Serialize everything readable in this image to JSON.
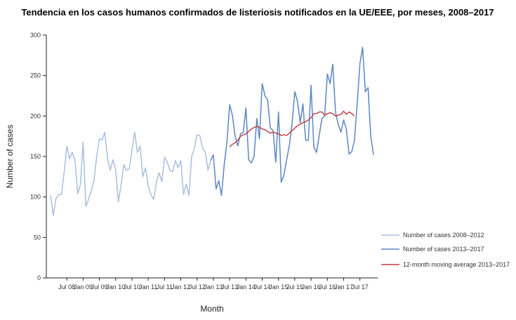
{
  "chart_data": {
    "type": "line",
    "title": "Tendencia en los casos humanos confirmados de listeriosis notificados en la UE/EEE, por meses, 2008–2017",
    "xlabel": "Month",
    "ylabel": "Number of cases",
    "ylim": [
      0,
      300
    ],
    "yticks": [
      0,
      50,
      100,
      150,
      200,
      250,
      300
    ],
    "grid": false,
    "legend_position": "right",
    "x_tick_labels": [
      "Jul 08",
      "Jan 09",
      "Jul 09",
      "Jan 10",
      "Jul 10",
      "Jan 11",
      "Jul 11",
      "Jan 12",
      "Jul 12",
      "Jan 13",
      "Jul 13",
      "Jan 14",
      "Jul 14",
      "Jan 15",
      "Jul 15",
      "Jan 16",
      "Jul 16",
      "Jan 17",
      "Jul 17"
    ],
    "series": [
      {
        "name": "Number of cases 2008–2012",
        "color": "#a9bfe0",
        "start_month_index": 0,
        "values": [
          102,
          77,
          98,
          103,
          103,
          130,
          163,
          147,
          155,
          145,
          104,
          115,
          168,
          88,
          97,
          108,
          120,
          150,
          172,
          170,
          180,
          148,
          133,
          146,
          133,
          94,
          115,
          140,
          133,
          135,
          158,
          180,
          155,
          163,
          125,
          136,
          113,
          103,
          97,
          118,
          130,
          119,
          149,
          143,
          133,
          131,
          145,
          136,
          145,
          103,
          116,
          102,
          150,
          160,
          177,
          176,
          160,
          156,
          133,
          145
        ]
      },
      {
        "name": "Number of cases 2013–2017",
        "color": "#5b87c2",
        "start_month_index": 59,
        "values": [
          145,
          152,
          110,
          120,
          102,
          140,
          168,
          214,
          201,
          175,
          163,
          178,
          180,
          210,
          146,
          142,
          150,
          197,
          172,
          240,
          225,
          220,
          185,
          182,
          143,
          205,
          118,
          127,
          146,
          164,
          190,
          230,
          218,
          192,
          215,
          170,
          170,
          238,
          162,
          155,
          176,
          197,
          200,
          252,
          240,
          264,
          205,
          190,
          180,
          195,
          184,
          153,
          156,
          170,
          215,
          265,
          285,
          230,
          235,
          175,
          152
        ]
      },
      {
        "name": "12-month moving average 2013–2017",
        "color": "#c0393b",
        "start_month_index": 66,
        "values": [
          162,
          165,
          167,
          170,
          175,
          177,
          178,
          181,
          184,
          186,
          187,
          186,
          184,
          183,
          181,
          179,
          180,
          179,
          178,
          176,
          177,
          176,
          179,
          182,
          185,
          188,
          190,
          192,
          193,
          195,
          198,
          203,
          203,
          205,
          205,
          201,
          203,
          204,
          203,
          200,
          201,
          202,
          206,
          202,
          205,
          203,
          200
        ]
      }
    ]
  }
}
